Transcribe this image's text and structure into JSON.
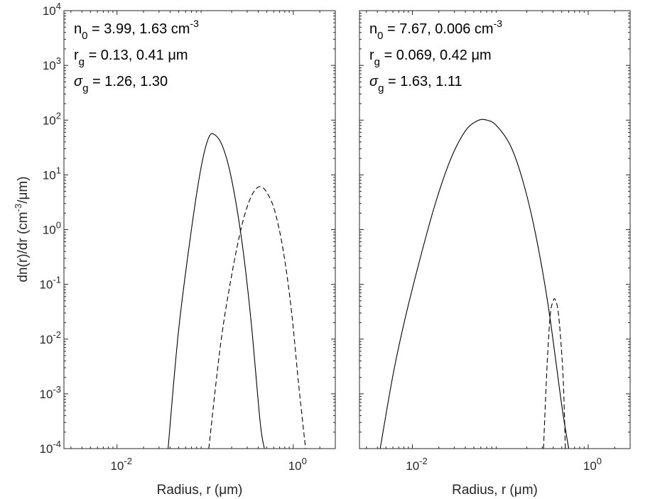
{
  "figure": {
    "ylabel": "dn(r)/dr (cm⁻³/μm)",
    "ylabel_parts": {
      "base": "dn(r)/dr (cm",
      "sup": "-3",
      "tail": "/μm)"
    }
  },
  "chart_data": [
    {
      "type": "line",
      "xscale": "log",
      "yscale": "log",
      "xlabel": "Radius, r (μm)",
      "ylabel": "dn(r)/dr (cm⁻³/μm)",
      "xlim": [
        0.0025,
        3
      ],
      "ylim": [
        0.0001,
        10000
      ],
      "x_ticks": [
        {
          "base": "10",
          "exp": "-2"
        },
        {
          "base": "10",
          "exp": "0"
        }
      ],
      "x_tick_values": [
        0.01,
        1
      ],
      "y_ticks": [
        {
          "base": "10",
          "exp": "-4"
        },
        {
          "base": "10",
          "exp": "-3"
        },
        {
          "base": "10",
          "exp": "-2"
        },
        {
          "base": "10",
          "exp": "-1"
        },
        {
          "base": "10",
          "exp": "0"
        },
        {
          "base": "10",
          "exp": "1"
        },
        {
          "base": "10",
          "exp": "2"
        },
        {
          "base": "10",
          "exp": "3"
        },
        {
          "base": "10",
          "exp": "4"
        }
      ],
      "y_tick_values": [
        0.0001,
        0.001,
        0.01,
        0.1,
        1,
        10,
        100,
        1000,
        10000
      ],
      "grid": false,
      "annotations": [
        {
          "var": "n",
          "sub": "0",
          "text": " = 3.99, 1.63 cm",
          "sup": "-3"
        },
        {
          "var": "r",
          "sub": "g",
          "text": " = 0.13, 0.41 μm",
          "sup": ""
        },
        {
          "var": "σ",
          "sub": "g",
          "text": " = 1.26, 1.30",
          "sup": ""
        }
      ],
      "series": [
        {
          "style": "solid",
          "points": [
            [
              0.038,
              0.0001
            ],
            [
              0.05,
              0.0145
            ],
            [
              0.07,
              1.02
            ],
            [
              0.09,
              13.7
            ],
            [
              0.11,
              48.4
            ],
            [
              0.13,
              53.3
            ],
            [
              0.16,
              31.3
            ],
            [
              0.2,
              8.19
            ],
            [
              0.26,
              0.645
            ],
            [
              0.33,
              0.0236
            ],
            [
              0.42,
              0.00032
            ],
            [
              0.47,
              0.0001
            ]
          ]
        },
        {
          "style": "dashed",
          "points": [
            [
              0.11,
              0.0001
            ],
            [
              0.15,
              0.0082
            ],
            [
              0.2,
              0.147
            ],
            [
              0.26,
              1.16
            ],
            [
              0.33,
              3.9
            ],
            [
              0.41,
              6.09
            ],
            [
              0.5,
              4.8
            ],
            [
              0.62,
              2.13
            ],
            [
              0.77,
              0.41
            ],
            [
              0.95,
              0.0347
            ],
            [
              1.15,
              0.00151
            ],
            [
              1.38,
              0.0001
            ]
          ]
        }
      ]
    },
    {
      "type": "line",
      "xscale": "log",
      "yscale": "log",
      "xlabel": "Radius, r (μm)",
      "ylabel": "",
      "xlim": [
        0.0025,
        3
      ],
      "ylim": [
        0.0001,
        10000
      ],
      "x_ticks": [
        {
          "base": "10",
          "exp": "-2"
        },
        {
          "base": "10",
          "exp": "0"
        }
      ],
      "x_tick_values": [
        0.01,
        1
      ],
      "y_tick_values": [
        0.0001,
        0.001,
        0.01,
        0.1,
        1,
        10,
        100,
        1000,
        10000
      ],
      "grid": false,
      "annotations": [
        {
          "var": "n",
          "sub": "0",
          "text": " = 7.67, 0.006 cm",
          "sup": "-3"
        },
        {
          "var": "r",
          "sub": "g",
          "text": " = 0.069, 0.42 μm",
          "sup": ""
        },
        {
          "var": "σ",
          "sub": "g",
          "text": " = 1.63, 1.11",
          "sup": ""
        }
      ],
      "series": [
        {
          "style": "solid",
          "points": [
            [
              0.0043,
              0.0001
            ],
            [
              0.006,
              0.00216
            ],
            [
              0.008,
              0.0191
            ],
            [
              0.012,
              0.262
            ],
            [
              0.018,
              2.79
            ],
            [
              0.027,
              18.7
            ],
            [
              0.04,
              63.3
            ],
            [
              0.055,
              97.3
            ],
            [
              0.069,
              101
            ],
            [
              0.09,
              80.2
            ],
            [
              0.13,
              34.6
            ],
            [
              0.18,
              7.9
            ],
            [
              0.25,
              0.88
            ],
            [
              0.35,
              0.0419
            ],
            [
              0.5,
              0.00062
            ],
            [
              0.6,
              0.0001
            ]
          ]
        },
        {
          "style": "dashed",
          "points": [
            [
              0.31,
              0.0001
            ],
            [
              0.34,
              0.00311
            ],
            [
              0.37,
              0.0275
            ],
            [
              0.4,
              0.0497
            ],
            [
              0.42,
              0.0534
            ],
            [
              0.45,
              0.0362
            ],
            [
              0.48,
              0.0132
            ],
            [
              0.52,
              0.00183
            ],
            [
              0.55,
              0.0001
            ]
          ]
        }
      ]
    }
  ]
}
